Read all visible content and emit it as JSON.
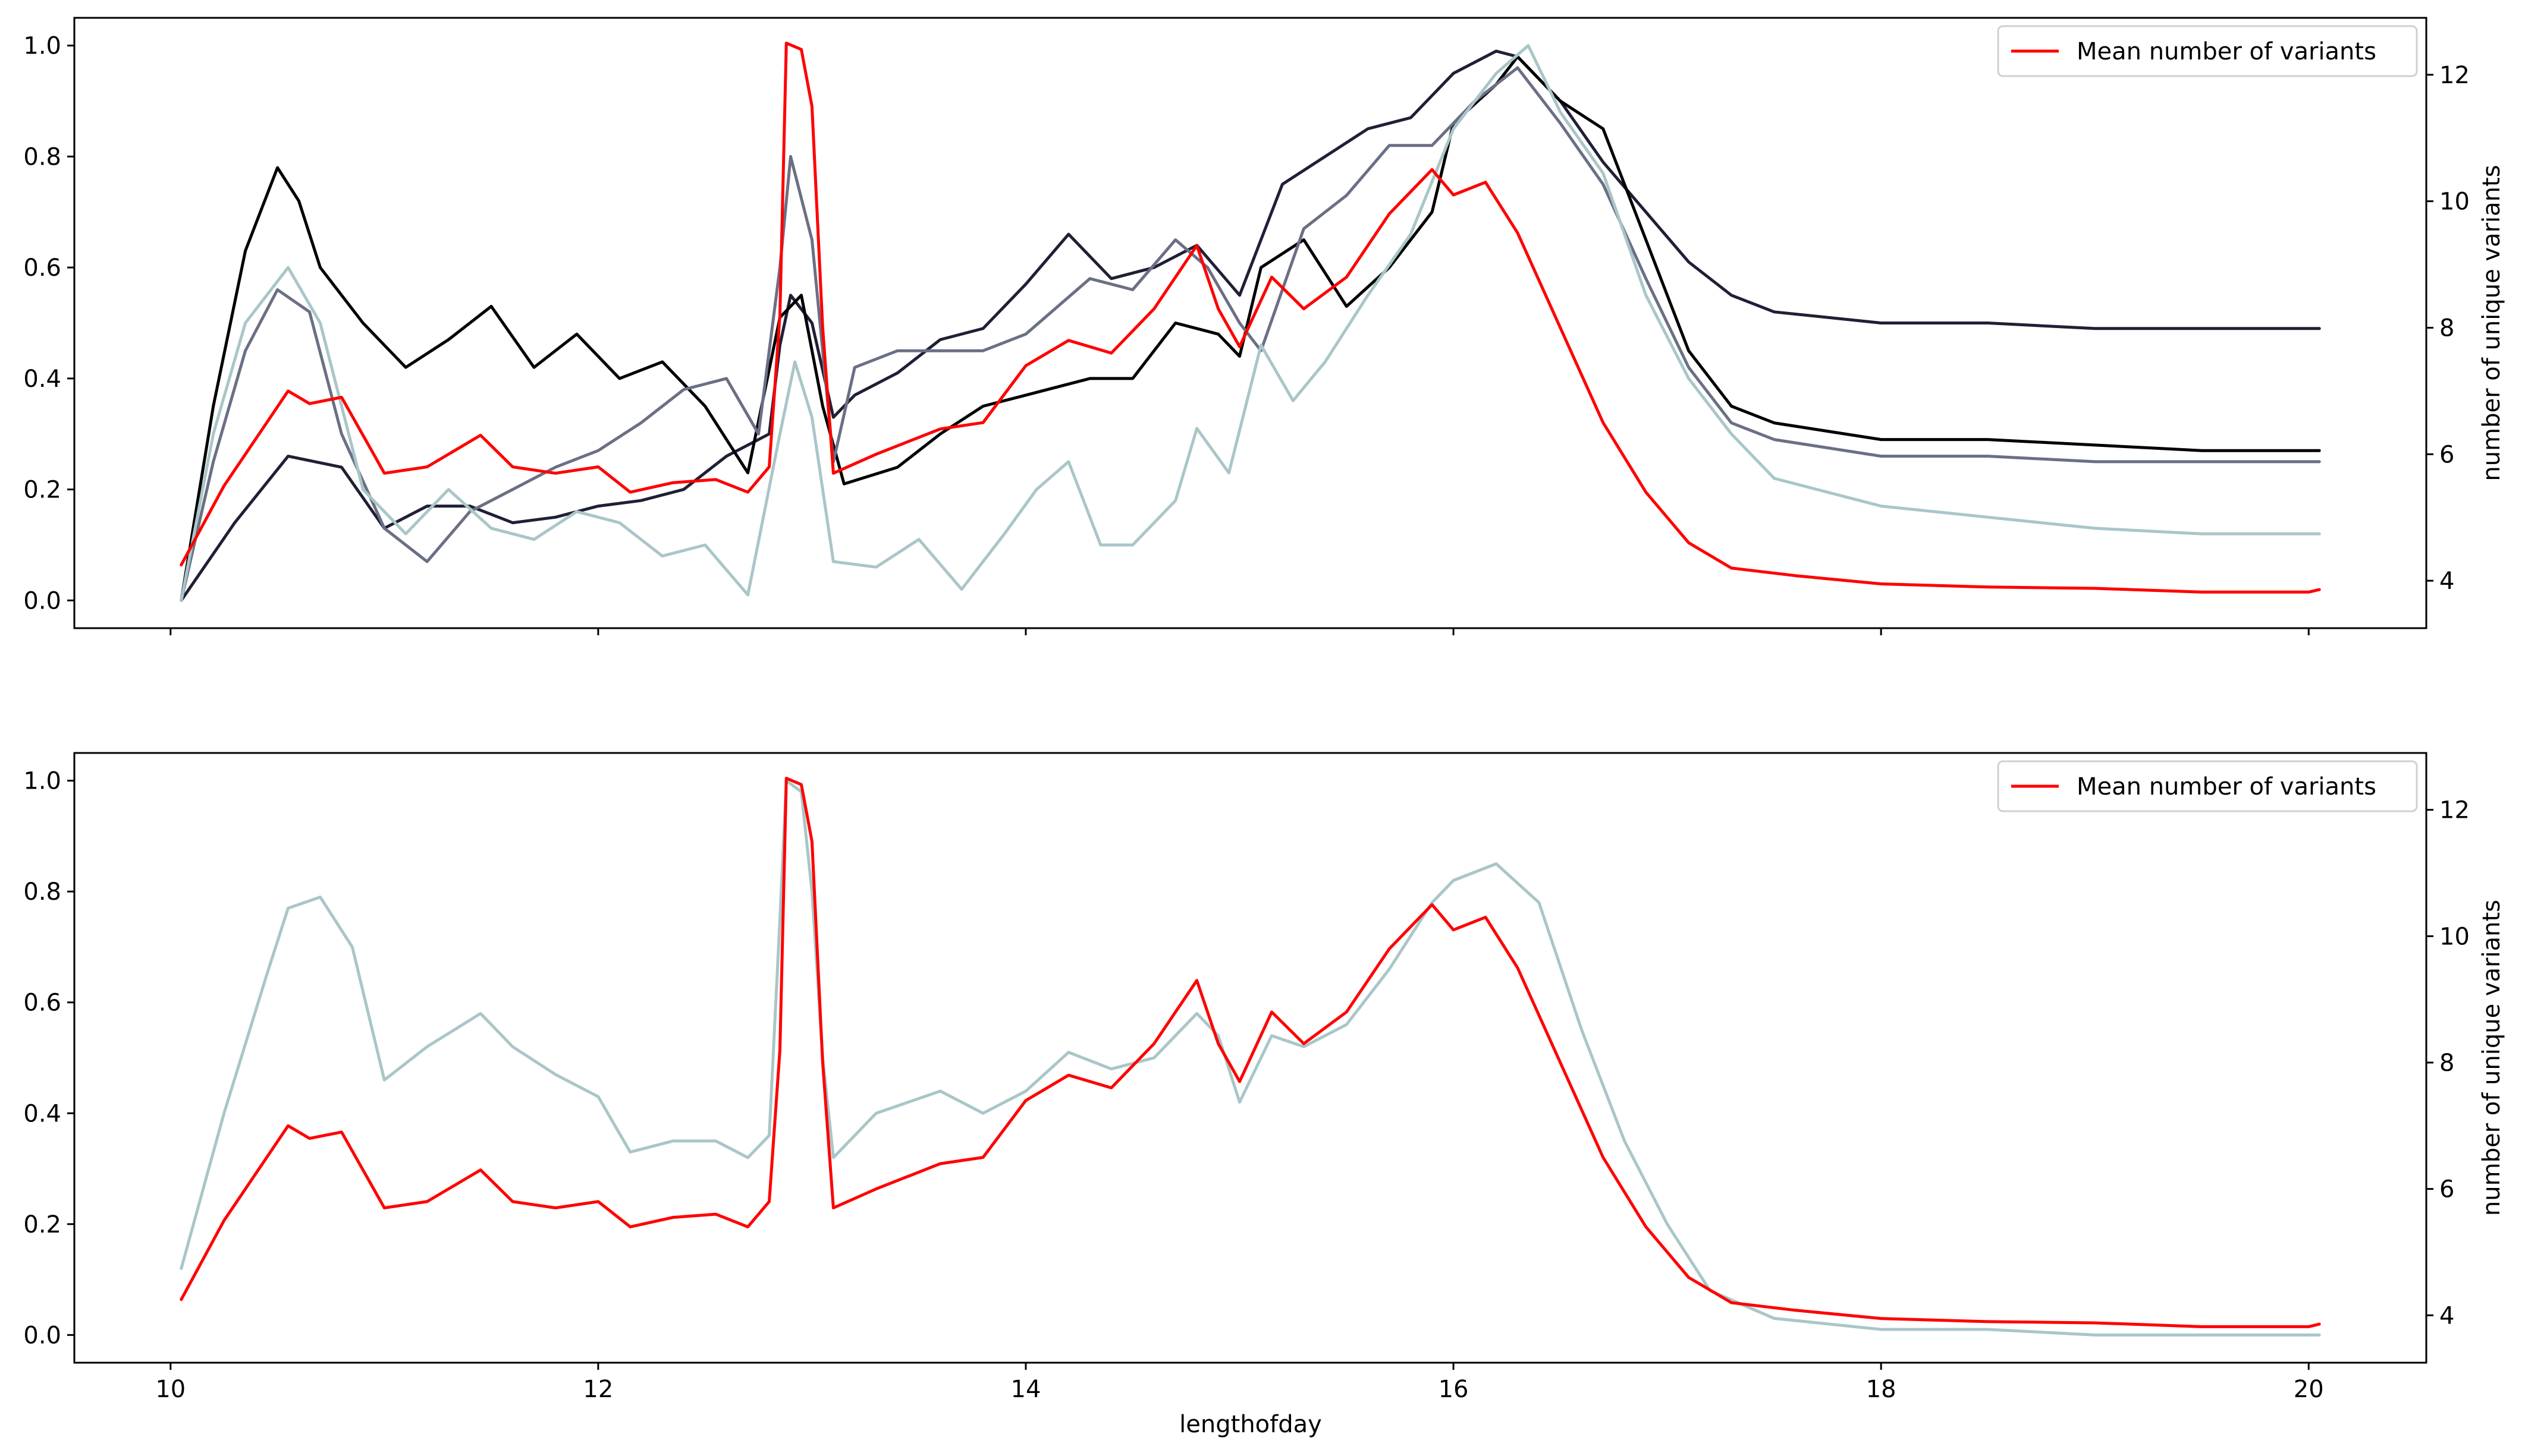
{
  "figure": {
    "xlabel": "lengthofday"
  },
  "chart_data": [
    {
      "type": "line",
      "panel": "top",
      "xlim": [
        9.55,
        20.55
      ],
      "ylim_left": [
        -0.05,
        1.05
      ],
      "ylim_right": [
        3.25,
        12.9
      ],
      "xticks": [
        10,
        12,
        14,
        16,
        18,
        20
      ],
      "xtick_labels": [
        "10",
        "12",
        "14",
        "16",
        "18",
        "20"
      ],
      "show_xtick_labels": false,
      "yticks_left": [
        0.0,
        0.2,
        0.4,
        0.6,
        0.8,
        1.0
      ],
      "ytick_labels_left": [
        "0.0",
        "0.2",
        "0.4",
        "0.6",
        "0.8",
        "1.0"
      ],
      "yticks_right": [
        4,
        6,
        8,
        10,
        12
      ],
      "ytick_labels_right": [
        "4",
        "6",
        "8",
        "10",
        "12"
      ],
      "ylabel_right": "number of unique variants",
      "legend": {
        "label": "Mean number of variants",
        "color": "#ff0000",
        "position": "top-right"
      },
      "series": [
        {
          "name": "normalized-series-1",
          "axis": "left",
          "color": "#1f1f35",
          "x": [
            10.05,
            10.3,
            10.55,
            10.8,
            11.0,
            11.2,
            11.4,
            11.6,
            11.8,
            12.0,
            12.2,
            12.4,
            12.6,
            12.8,
            12.85,
            12.9,
            13.0,
            13.1,
            13.2,
            13.4,
            13.6,
            13.8,
            14.0,
            14.2,
            14.4,
            14.6,
            14.8,
            15.0,
            15.2,
            15.4,
            15.6,
            15.8,
            16.0,
            16.2,
            16.3,
            16.5,
            16.7,
            16.9,
            17.1,
            17.3,
            17.5,
            18.0,
            18.5,
            19.0,
            19.5,
            20.05
          ],
          "y": [
            0.0,
            0.14,
            0.26,
            0.24,
            0.13,
            0.17,
            0.17,
            0.14,
            0.15,
            0.17,
            0.18,
            0.2,
            0.26,
            0.3,
            0.46,
            0.55,
            0.5,
            0.33,
            0.37,
            0.41,
            0.47,
            0.49,
            0.57,
            0.66,
            0.58,
            0.6,
            0.64,
            0.55,
            0.75,
            0.8,
            0.85,
            0.87,
            0.95,
            0.99,
            0.98,
            0.9,
            0.79,
            0.7,
            0.61,
            0.55,
            0.52,
            0.5,
            0.5,
            0.49,
            0.49,
            0.49
          ]
        },
        {
          "name": "normalized-series-2",
          "axis": "left",
          "color": "#000000",
          "x": [
            10.05,
            10.2,
            10.35,
            10.5,
            10.6,
            10.7,
            10.9,
            11.1,
            11.3,
            11.5,
            11.7,
            11.9,
            12.1,
            12.3,
            12.5,
            12.7,
            12.85,
            12.95,
            13.05,
            13.15,
            13.4,
            13.6,
            13.8,
            14.0,
            14.3,
            14.5,
            14.7,
            14.9,
            15.0,
            15.1,
            15.3,
            15.5,
            15.7,
            15.9,
            16.0,
            16.2,
            16.3,
            16.5,
            16.7,
            16.9,
            17.1,
            17.3,
            17.5,
            18.0,
            18.5,
            19.0,
            19.5,
            20.05
          ],
          "y": [
            0.0,
            0.35,
            0.63,
            0.78,
            0.72,
            0.6,
            0.5,
            0.42,
            0.47,
            0.53,
            0.42,
            0.48,
            0.4,
            0.43,
            0.35,
            0.23,
            0.51,
            0.55,
            0.35,
            0.21,
            0.24,
            0.3,
            0.35,
            0.37,
            0.4,
            0.4,
            0.5,
            0.48,
            0.44,
            0.6,
            0.65,
            0.53,
            0.6,
            0.7,
            0.86,
            0.93,
            0.98,
            0.9,
            0.85,
            0.65,
            0.45,
            0.35,
            0.32,
            0.29,
            0.29,
            0.28,
            0.27,
            0.27
          ]
        },
        {
          "name": "normalized-series-3",
          "axis": "left",
          "color": "#6b6f85",
          "x": [
            10.05,
            10.2,
            10.35,
            10.5,
            10.65,
            10.8,
            11.0,
            11.2,
            11.4,
            11.6,
            11.8,
            12.0,
            12.2,
            12.4,
            12.6,
            12.75,
            12.85,
            12.9,
            13.0,
            13.1,
            13.2,
            13.4,
            13.6,
            13.8,
            14.0,
            14.3,
            14.5,
            14.7,
            14.85,
            15.0,
            15.1,
            15.3,
            15.5,
            15.7,
            15.9,
            16.1,
            16.3,
            16.5,
            16.7,
            16.9,
            17.1,
            17.3,
            17.5,
            18.0,
            18.5,
            19.0,
            19.5,
            20.05
          ],
          "y": [
            0.0,
            0.25,
            0.45,
            0.56,
            0.52,
            0.3,
            0.13,
            0.07,
            0.16,
            0.2,
            0.24,
            0.27,
            0.32,
            0.38,
            0.4,
            0.3,
            0.6,
            0.8,
            0.65,
            0.25,
            0.42,
            0.45,
            0.45,
            0.45,
            0.48,
            0.58,
            0.56,
            0.65,
            0.6,
            0.5,
            0.45,
            0.67,
            0.73,
            0.82,
            0.82,
            0.9,
            0.96,
            0.86,
            0.75,
            0.58,
            0.42,
            0.32,
            0.29,
            0.26,
            0.26,
            0.25,
            0.25,
            0.25
          ]
        },
        {
          "name": "normalized-series-4",
          "axis": "left",
          "color": "#a9c6c8",
          "x": [
            10.05,
            10.2,
            10.35,
            10.55,
            10.7,
            10.9,
            11.1,
            11.3,
            11.5,
            11.7,
            11.9,
            12.1,
            12.3,
            12.5,
            12.7,
            12.85,
            12.92,
            13.0,
            13.1,
            13.3,
            13.5,
            13.7,
            13.9,
            14.05,
            14.2,
            14.35,
            14.5,
            14.7,
            14.8,
            14.95,
            15.1,
            15.25,
            15.4,
            15.6,
            15.8,
            16.0,
            16.2,
            16.35,
            16.5,
            16.7,
            16.9,
            17.1,
            17.3,
            17.5,
            18.0,
            18.5,
            19.0,
            19.5,
            20.05
          ],
          "y": [
            0.0,
            0.3,
            0.5,
            0.6,
            0.5,
            0.2,
            0.12,
            0.2,
            0.13,
            0.11,
            0.16,
            0.14,
            0.08,
            0.1,
            0.01,
            0.3,
            0.43,
            0.33,
            0.07,
            0.06,
            0.11,
            0.02,
            0.12,
            0.2,
            0.25,
            0.1,
            0.1,
            0.18,
            0.31,
            0.23,
            0.46,
            0.36,
            0.43,
            0.55,
            0.66,
            0.85,
            0.95,
            1.0,
            0.88,
            0.77,
            0.55,
            0.4,
            0.3,
            0.22,
            0.17,
            0.15,
            0.13,
            0.12,
            0.12
          ]
        },
        {
          "name": "mean-number-of-variants",
          "axis": "right",
          "color": "#ff0000",
          "x": [
            10.05,
            10.25,
            10.45,
            10.55,
            10.65,
            10.8,
            10.95,
            11.0,
            11.2,
            11.45,
            11.6,
            11.8,
            12.0,
            12.15,
            12.35,
            12.55,
            12.7,
            12.8,
            12.85,
            12.88,
            12.95,
            13.0,
            13.05,
            13.1,
            13.3,
            13.6,
            13.8,
            14.0,
            14.2,
            14.4,
            14.6,
            14.8,
            14.9,
            15.0,
            15.15,
            15.3,
            15.5,
            15.7,
            15.9,
            16.0,
            16.15,
            16.3,
            16.5,
            16.7,
            16.9,
            17.1,
            17.3,
            17.6,
            18.0,
            18.5,
            19.0,
            19.5,
            20.0,
            20.05
          ],
          "y": [
            4.25,
            5.5,
            6.5,
            7.0,
            6.8,
            6.9,
            6.0,
            5.7,
            5.8,
            6.3,
            5.8,
            5.7,
            5.8,
            5.4,
            5.55,
            5.6,
            5.4,
            5.8,
            8.2,
            12.5,
            12.4,
            11.5,
            8.0,
            5.7,
            6.0,
            6.4,
            6.5,
            7.4,
            7.8,
            7.6,
            8.3,
            9.3,
            8.3,
            7.7,
            8.8,
            8.3,
            8.8,
            9.8,
            10.5,
            10.1,
            10.3,
            9.5,
            8.0,
            6.5,
            5.4,
            4.6,
            4.2,
            4.08,
            3.95,
            3.9,
            3.88,
            3.82,
            3.82,
            3.86
          ]
        }
      ]
    },
    {
      "type": "line",
      "panel": "bottom",
      "xlim": [
        9.55,
        20.55
      ],
      "ylim_left": [
        -0.05,
        1.05
      ],
      "ylim_right": [
        3.25,
        12.9
      ],
      "xticks": [
        10,
        12,
        14,
        16,
        18,
        20
      ],
      "xtick_labels": [
        "10",
        "12",
        "14",
        "16",
        "18",
        "20"
      ],
      "show_xtick_labels": true,
      "xlabel": "lengthofday",
      "yticks_left": [
        0.0,
        0.2,
        0.4,
        0.6,
        0.8,
        1.0
      ],
      "ytick_labels_left": [
        "0.0",
        "0.2",
        "0.4",
        "0.6",
        "0.8",
        "1.0"
      ],
      "yticks_right": [
        4,
        6,
        8,
        10,
        12
      ],
      "ytick_labels_right": [
        "4",
        "6",
        "8",
        "10",
        "12"
      ],
      "ylabel_right": "number of unique variants",
      "legend": {
        "label": "Mean number of variants",
        "color": "#ff0000",
        "position": "top-right"
      },
      "series": [
        {
          "name": "normalized-series",
          "axis": "left",
          "color": "#a9c6c8",
          "x": [
            10.05,
            10.25,
            10.45,
            10.55,
            10.7,
            10.85,
            11.0,
            11.2,
            11.45,
            11.6,
            11.8,
            12.0,
            12.15,
            12.35,
            12.55,
            12.7,
            12.8,
            12.85,
            12.88,
            12.95,
            13.0,
            13.05,
            13.1,
            13.3,
            13.6,
            13.8,
            14.0,
            14.2,
            14.4,
            14.6,
            14.8,
            14.9,
            15.0,
            15.15,
            15.3,
            15.5,
            15.7,
            15.9,
            16.0,
            16.2,
            16.4,
            16.6,
            16.8,
            17.0,
            17.2,
            17.5,
            18.0,
            18.5,
            19.0,
            19.5,
            20.0,
            20.05
          ],
          "y": [
            0.12,
            0.4,
            0.65,
            0.77,
            0.79,
            0.7,
            0.46,
            0.52,
            0.58,
            0.52,
            0.47,
            0.43,
            0.33,
            0.35,
            0.35,
            0.32,
            0.36,
            0.75,
            1.0,
            0.98,
            0.8,
            0.5,
            0.32,
            0.4,
            0.44,
            0.4,
            0.44,
            0.51,
            0.48,
            0.5,
            0.58,
            0.54,
            0.42,
            0.54,
            0.52,
            0.56,
            0.66,
            0.78,
            0.82,
            0.85,
            0.78,
            0.55,
            0.35,
            0.2,
            0.08,
            0.03,
            0.01,
            0.01,
            0.0,
            0.0,
            0.0,
            0.0
          ]
        },
        {
          "name": "mean-number-of-variants",
          "axis": "right",
          "color": "#ff0000",
          "x": [
            10.05,
            10.25,
            10.45,
            10.55,
            10.65,
            10.8,
            10.95,
            11.0,
            11.2,
            11.45,
            11.6,
            11.8,
            12.0,
            12.15,
            12.35,
            12.55,
            12.7,
            12.8,
            12.85,
            12.88,
            12.95,
            13.0,
            13.05,
            13.1,
            13.3,
            13.6,
            13.8,
            14.0,
            14.2,
            14.4,
            14.6,
            14.8,
            14.9,
            15.0,
            15.15,
            15.3,
            15.5,
            15.7,
            15.9,
            16.0,
            16.15,
            16.3,
            16.5,
            16.7,
            16.9,
            17.1,
            17.3,
            17.6,
            18.0,
            18.5,
            19.0,
            19.5,
            20.0,
            20.05
          ],
          "y": [
            4.25,
            5.5,
            6.5,
            7.0,
            6.8,
            6.9,
            6.0,
            5.7,
            5.8,
            6.3,
            5.8,
            5.7,
            5.8,
            5.4,
            5.55,
            5.6,
            5.4,
            5.8,
            8.2,
            12.5,
            12.4,
            11.5,
            8.0,
            5.7,
            6.0,
            6.4,
            6.5,
            7.4,
            7.8,
            7.6,
            8.3,
            9.3,
            8.3,
            7.7,
            8.8,
            8.3,
            8.8,
            9.8,
            10.5,
            10.1,
            10.3,
            9.5,
            8.0,
            6.5,
            5.4,
            4.6,
            4.2,
            4.08,
            3.95,
            3.9,
            3.88,
            3.82,
            3.82,
            3.86
          ]
        }
      ]
    }
  ]
}
